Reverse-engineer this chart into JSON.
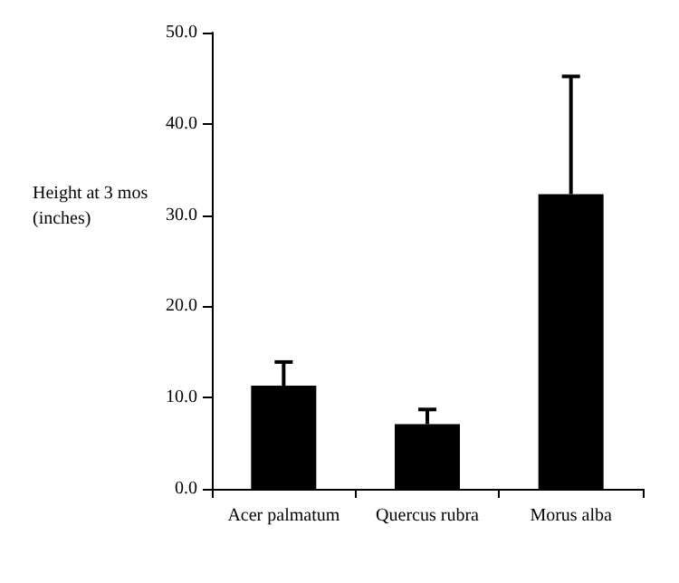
{
  "chart_data": {
    "type": "bar",
    "ylabel": "Height at 3 mos (inches)",
    "categories": [
      "Acer palmatum",
      "Quercus rubra",
      "Morus alba"
    ],
    "values": [
      11.3,
      7.1,
      32.3
    ],
    "color": "#000000",
    "errors": [
      [
        11.3,
        13.9
      ],
      [
        7.1,
        8.7
      ],
      [
        32.3,
        45.2
      ]
    ],
    "ylim": [
      0,
      50
    ],
    "yticks": [
      {
        "value": 0,
        "label": "0.0"
      },
      {
        "value": 10,
        "label": "10.0"
      },
      {
        "value": 20,
        "label": "20.0"
      },
      {
        "value": 30,
        "label": "30.0"
      },
      {
        "value": 40,
        "label": "40.0"
      },
      {
        "value": 50,
        "label": "50.0"
      }
    ],
    "grid": false
  }
}
